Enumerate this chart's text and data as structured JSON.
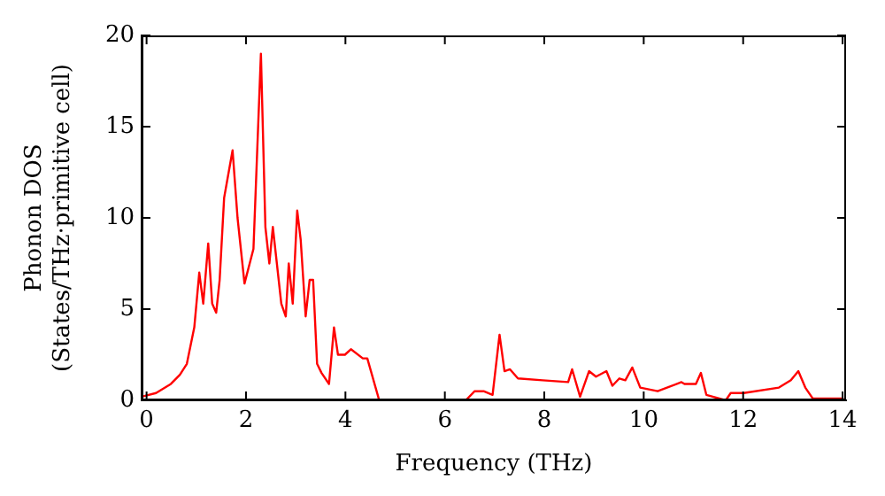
{
  "chart_data": {
    "type": "line",
    "xlabel": "Frequency (THz)",
    "ylabel": "Phonon DOS\n(States/THz·primitive cell)",
    "xlim": [
      -0.1,
      14.07
    ],
    "ylim": [
      0,
      20
    ],
    "xticks": [
      0,
      2,
      4,
      6,
      8,
      10,
      12,
      14
    ],
    "yticks": [
      0,
      5,
      10,
      15,
      20
    ],
    "grid": false,
    "legend": false,
    "marker": "none",
    "line_style": "solid",
    "series": [
      {
        "color": "#ff0000",
        "x": [
          -0.1,
          0.19,
          0.49,
          0.67,
          0.81,
          0.96,
          1.06,
          1.14,
          1.24,
          1.32,
          1.4,
          1.47,
          1.56,
          1.73,
          1.83,
          1.97,
          2.15,
          2.3,
          2.39,
          2.47,
          2.54,
          2.71,
          2.8,
          2.86,
          2.94,
          3.03,
          3.1,
          3.2,
          3.28,
          3.35,
          3.43,
          3.52,
          3.67,
          3.77,
          3.85,
          3.99,
          4.11,
          4.35,
          4.44,
          4.68,
          6.42,
          6.6,
          6.78,
          6.96,
          7.1,
          7.2,
          7.31,
          7.47,
          7.97,
          8.48,
          8.56,
          8.72,
          8.9,
          9.04,
          9.25,
          9.37,
          9.51,
          9.63,
          9.77,
          9.93,
          10.28,
          10.76,
          10.82,
          11.05,
          11.15,
          11.26,
          11.65,
          11.75,
          12.01,
          12.72,
          12.96,
          13.11,
          13.25,
          13.4,
          14.02
        ],
        "values": [
          0.2,
          0.4,
          0.9,
          1.4,
          2.0,
          4.0,
          7.0,
          5.3,
          8.6,
          5.3,
          4.8,
          6.6,
          11.1,
          13.7,
          10.0,
          6.4,
          8.3,
          19.0,
          9.5,
          7.5,
          9.5,
          5.3,
          4.6,
          7.5,
          5.3,
          10.4,
          8.8,
          4.6,
          6.6,
          6.6,
          2.0,
          1.5,
          0.9,
          4.0,
          2.5,
          2.5,
          2.8,
          2.3,
          2.3,
          0,
          0,
          0.5,
          0.5,
          0.3,
          3.6,
          1.6,
          1.7,
          1.2,
          1.1,
          1.0,
          1.7,
          0.2,
          1.6,
          1.3,
          1.6,
          0.8,
          1.2,
          1.1,
          1.8,
          0.7,
          0.5,
          1.0,
          0.9,
          0.9,
          1.5,
          0.3,
          0,
          0.4,
          0.4,
          0.7,
          1.1,
          1.6,
          0.7,
          0.1,
          0.1
        ]
      }
    ]
  }
}
